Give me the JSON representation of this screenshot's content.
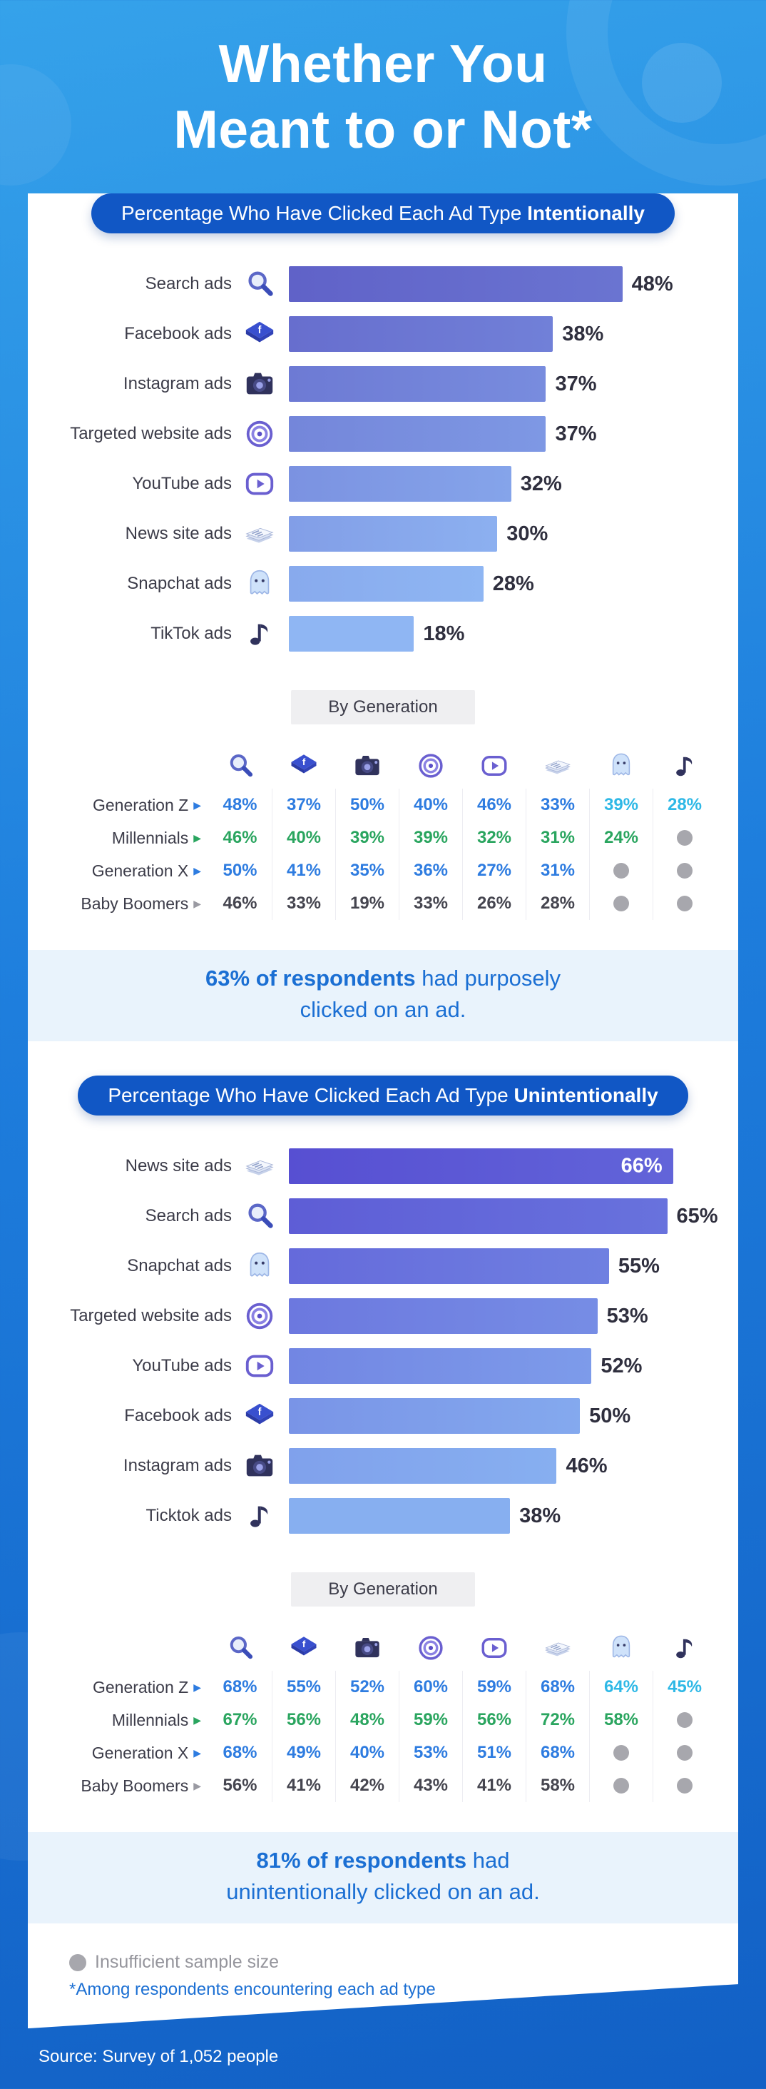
{
  "page": {
    "title_line1": "Whether You",
    "title_line2": "Meant to or Not*",
    "source": "Source: Survey of 1,052 people"
  },
  "legend": {
    "insufficient_label": "Insufficient sample size",
    "insufficient_icon": "gray-dot-icon",
    "footnote": "*Among respondents encountering each ad type"
  },
  "callouts": [
    {
      "bold": "63% of respondents",
      "rest": " had purposely",
      "line2": "clicked on an ad."
    },
    {
      "bold": "81% of respondents",
      "rest": " had",
      "line2": "unintentionally clicked on an ad."
    }
  ],
  "colors": {
    "badge_bg": "#1157c5",
    "callout_bg": "#e9f3fc",
    "callout_text": "#1b6fd3",
    "gen_z": "#2e7ce0",
    "gen_z_alt": "#2eb8e6",
    "millennials": "#2aa55f",
    "gen_x": "#2e7ce0",
    "baby_boomers": "#45454f",
    "insufficient_dot": "#a7a7ad"
  },
  "chart_data": [
    {
      "type": "bar",
      "orientation": "horizontal",
      "badge_prefix": "Percentage Who Have Clicked Each Ad Type ",
      "badge_bold": "Intentionally",
      "unit": "%",
      "categories": [
        "Search ads",
        "Facebook ads",
        "Instagram ads",
        "Targeted website ads",
        "YouTube ads",
        "News site ads",
        "Snapchat ads",
        "TikTok ads"
      ],
      "icons": [
        "search-icon",
        "facebook-icon",
        "camera-icon",
        "target-icon",
        "youtube-icon",
        "news-icon",
        "ghost-icon",
        "music-note-icon"
      ],
      "values": [
        48,
        38,
        37,
        37,
        32,
        30,
        28,
        18
      ],
      "xlim": [
        0,
        62
      ],
      "grid": false,
      "inside_label_indices": [],
      "bar_color_top": "#6062c8",
      "bar_color_bottom": "#8fb6f3",
      "by_generation_label": "By Generation",
      "generation_table": {
        "column_icons": [
          "search-icon",
          "facebook-icon",
          "camera-icon",
          "target-icon",
          "youtube-icon",
          "news-icon",
          "ghost-icon",
          "music-note-icon"
        ],
        "rows": [
          {
            "label": "Generation Z",
            "arrow_color": "#2e7ce0",
            "values": [
              48,
              37,
              50,
              40,
              46,
              33,
              39,
              28
            ],
            "colors": [
              "#2e7ce0",
              "#2e7ce0",
              "#2e7ce0",
              "#2e7ce0",
              "#2e7ce0",
              "#2e7ce0",
              "#2eb8e6",
              "#2eb8e6"
            ]
          },
          {
            "label": "Millennials",
            "arrow_color": "#2aa55f",
            "values": [
              46,
              40,
              39,
              39,
              32,
              31,
              24,
              null
            ],
            "colors": [
              "#2aa55f",
              "#2aa55f",
              "#2aa55f",
              "#2aa55f",
              "#2aa55f",
              "#2aa55f",
              "#2aa55f",
              null
            ]
          },
          {
            "label": "Generation X",
            "arrow_color": "#2e7ce0",
            "values": [
              50,
              41,
              35,
              36,
              27,
              31,
              null,
              null
            ],
            "colors": [
              "#2e7ce0",
              "#2e7ce0",
              "#2e7ce0",
              "#2e7ce0",
              "#2e7ce0",
              "#2e7ce0",
              null,
              null
            ]
          },
          {
            "label": "Baby Boomers",
            "arrow_color": "#9a9aa2",
            "values": [
              46,
              33,
              19,
              33,
              26,
              28,
              null,
              null
            ],
            "colors": [
              "#45454f",
              "#45454f",
              "#45454f",
              "#45454f",
              "#45454f",
              "#45454f",
              null,
              null
            ]
          }
        ]
      }
    },
    {
      "type": "bar",
      "orientation": "horizontal",
      "badge_prefix": "Percentage Who Have Clicked Each Ad Type ",
      "badge_bold": "Unintentionally",
      "unit": "%",
      "categories": [
        "News site ads",
        "Search ads",
        "Snapchat ads",
        "Targeted website ads",
        "YouTube ads",
        "Facebook ads",
        "Instagram ads",
        "Ticktok ads"
      ],
      "icons": [
        "news-icon",
        "search-icon",
        "ghost-icon",
        "target-icon",
        "youtube-icon",
        "facebook-icon",
        "camera-icon",
        "music-note-icon"
      ],
      "values": [
        66,
        65,
        55,
        53,
        52,
        50,
        46,
        38
      ],
      "xlim": [
        0,
        74
      ],
      "grid": false,
      "inside_label_indices": [
        0
      ],
      "bar_color_top": "#574fd2",
      "bar_color_bottom": "#87aff0",
      "by_generation_label": "By Generation",
      "generation_table": {
        "column_icons": [
          "search-icon",
          "facebook-icon",
          "camera-icon",
          "target-icon",
          "youtube-icon",
          "news-icon",
          "ghost-icon",
          "music-note-icon"
        ],
        "rows": [
          {
            "label": "Generation Z",
            "arrow_color": "#2e7ce0",
            "values": [
              68,
              55,
              52,
              60,
              59,
              68,
              64,
              45
            ],
            "colors": [
              "#2e7ce0",
              "#2e7ce0",
              "#2e7ce0",
              "#2e7ce0",
              "#2e7ce0",
              "#2e7ce0",
              "#2eb8e6",
              "#2eb8e6"
            ]
          },
          {
            "label": "Millennials",
            "arrow_color": "#2aa55f",
            "values": [
              67,
              56,
              48,
              59,
              56,
              72,
              58,
              null
            ],
            "colors": [
              "#2aa55f",
              "#2aa55f",
              "#2aa55f",
              "#2aa55f",
              "#2aa55f",
              "#2aa55f",
              "#2aa55f",
              null
            ]
          },
          {
            "label": "Generation X",
            "arrow_color": "#2e7ce0",
            "values": [
              68,
              49,
              40,
              53,
              51,
              68,
              null,
              null
            ],
            "colors": [
              "#2e7ce0",
              "#2e7ce0",
              "#2e7ce0",
              "#2e7ce0",
              "#2e7ce0",
              "#2e7ce0",
              null,
              null
            ]
          },
          {
            "label": "Baby Boomers",
            "arrow_color": "#9a9aa2",
            "values": [
              56,
              41,
              42,
              43,
              41,
              58,
              null,
              null
            ],
            "colors": [
              "#45454f",
              "#45454f",
              "#45454f",
              "#45454f",
              "#45454f",
              "#45454f",
              null,
              null
            ]
          }
        ]
      }
    }
  ]
}
